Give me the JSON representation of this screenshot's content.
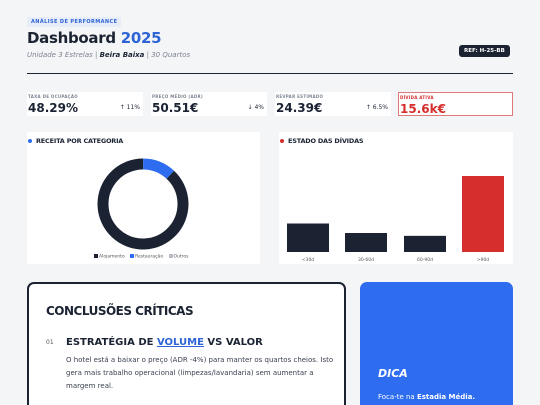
{
  "header": {
    "tag": "ANÁLISE DE PERFORMANCE",
    "title": "Dashboard",
    "year": "2025",
    "subtitle_1": "Unidade 3 Estrelas",
    "subtitle_sep_1": " | ",
    "subtitle_2": "Beira Baixa",
    "subtitle_sep_2": " | ",
    "subtitle_3": "30 Quartos",
    "ref": "REF: H-25-BB"
  },
  "kpis": [
    {
      "label": "TAXA DE OCUPAÇÃO",
      "value": "48.29%",
      "delta": "↑ 11%"
    },
    {
      "label": "PREÇO MÉDIO (ADR)",
      "value": "50.51€",
      "delta": "↓ 4%"
    },
    {
      "label": "REVPAR ESTIMADO",
      "value": "24.39€",
      "delta": "↑ 6.5%"
    },
    {
      "label": "DÍVIDA ATIVA",
      "value": "15.6k€",
      "delta": ""
    }
  ],
  "colors": {
    "navy": "#1b2333",
    "blue": "#2e6cf0",
    "red": "#d62d2d",
    "grey": "#b8bcc4"
  },
  "revenue_panel": {
    "title": "RECEITA POR CATEGORIA"
  },
  "debt_panel": {
    "title": "ESTADO DAS DÍVIDAS"
  },
  "chart_data": [
    {
      "type": "pie",
      "title": "RECEITA POR CATEGORIA",
      "categories": [
        "Alojamento",
        "Restauração",
        "Outros"
      ],
      "values": [
        88,
        12,
        0
      ],
      "colors": [
        "#1b2333",
        "#2e6cf0",
        "#b8bcc4"
      ],
      "legend": "bottom"
    },
    {
      "type": "bar",
      "title": "ESTADO DAS DÍVIDAS",
      "categories": [
        "<30d",
        "30-60d",
        "60-90d",
        ">90d"
      ],
      "values": [
        30,
        20,
        17,
        80
      ],
      "colors": [
        "#1b2333",
        "#1b2333",
        "#1b2333",
        "#d62d2d"
      ],
      "ylim": [
        0,
        100
      ],
      "grid": false
    }
  ],
  "conclusions": {
    "title": "CONCLUSÕES CRÍTICAS",
    "number": "01",
    "strategy_prefix": "ESTRATÉGIA DE ",
    "strategy_highlight": "VOLUME",
    "strategy_suffix": " VS VALOR",
    "text": "O hotel está a baixar o preço (ADR -4%) para manter os quartos cheios. Isto gera mais trabalho operacional (limpezas/lavandaria) sem aumentar a margem real."
  },
  "tip": {
    "title": "DICA",
    "text_prefix": "Foca-te na ",
    "text_bold": "Estadia Média."
  }
}
